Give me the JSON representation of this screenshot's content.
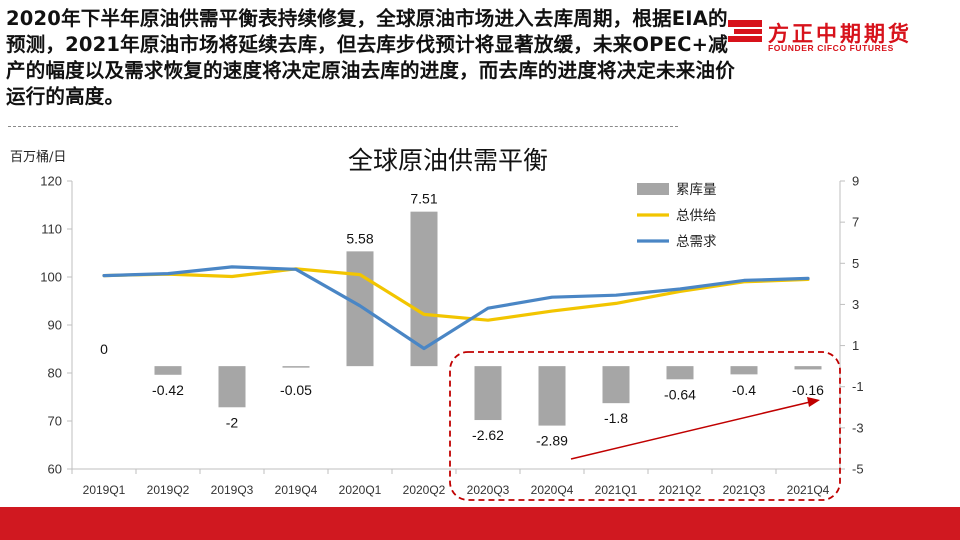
{
  "headline": "2020年下半年原油供需平衡表持续修复，全球原油市场进入去库周期，根据EIA的预测，2021年原油市场将延续去库，但去库步伐预计将显著放缓，未来OPEC+减产的幅度以及需求恢复的速度将决定原油去库的进度，而去库的进度将决定未来油价运行的高度。",
  "logo": {
    "name": "方正中期期货",
    "subtitle": "FOUNDER CIFCO FUTURES",
    "color": "#d7121b"
  },
  "colors": {
    "bars": "#a6a6a6",
    "supply": "#f2c500",
    "demand": "#4a86c5",
    "highlight": "#c00000",
    "bottom_bar": "#d01820"
  },
  "chart_data": {
    "type": "bar+line",
    "title": "全球原油供需平衡",
    "unit_label": "百万桶/日",
    "categories": [
      "2019Q1",
      "2019Q2",
      "2019Q3",
      "2019Q4",
      "2020Q1",
      "2020Q2",
      "2020Q3",
      "2020Q4",
      "2021Q1",
      "2021Q2",
      "2021Q3",
      "2021Q4"
    ],
    "y_left": {
      "min": 60,
      "max": 120,
      "ticks": [
        60,
        70,
        80,
        90,
        100,
        110,
        120
      ]
    },
    "y_right": {
      "min": -5,
      "max": 9,
      "ticks": [
        -5,
        -3,
        -1,
        1,
        3,
        5,
        7,
        9
      ]
    },
    "series": [
      {
        "name": "累库量",
        "kind": "bar",
        "axis": "right",
        "values": [
          0,
          -0.42,
          -2,
          -0.05,
          5.58,
          7.51,
          -2.62,
          -2.89,
          -1.8,
          -0.64,
          -0.4,
          -0.16
        ],
        "labels": [
          "0",
          "-0.42",
          "-2",
          "-0.05",
          "5.58",
          "7.51",
          "-2.62",
          "-2.89",
          "-1.8",
          "-0.64",
          "-0.4",
          "-0.16"
        ]
      },
      {
        "name": "总供给",
        "kind": "line",
        "axis": "left",
        "values": [
          100.3,
          100.6,
          100.1,
          101.7,
          100.5,
          92.2,
          91.0,
          92.9,
          94.5,
          97.0,
          99.0,
          99.5
        ]
      },
      {
        "name": "总需求",
        "kind": "line",
        "axis": "left",
        "values": [
          100.3,
          100.7,
          102.1,
          101.6,
          94.0,
          85.1,
          93.5,
          95.8,
          96.2,
          97.5,
          99.3,
          99.7
        ]
      }
    ],
    "legend_position": "top-right",
    "grid": false
  }
}
